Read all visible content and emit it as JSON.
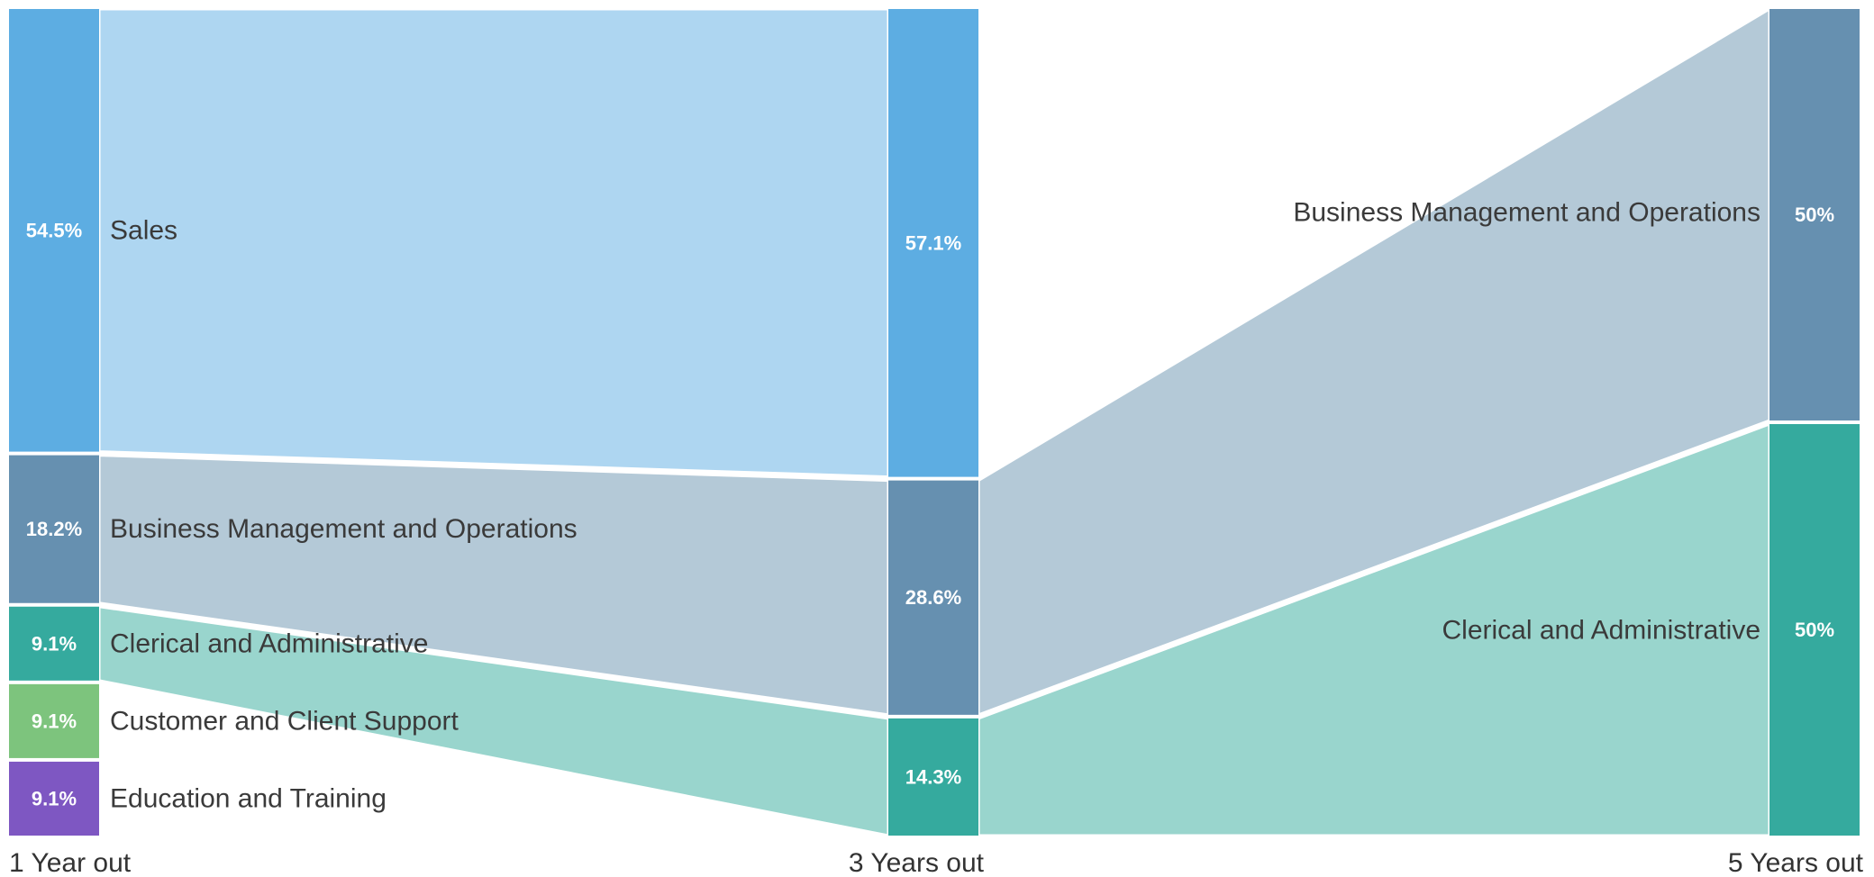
{
  "chart_data": {
    "type": "sankey",
    "columns": [
      {
        "label": "1 Year out",
        "nodes": [
          {
            "id": "y1-sales",
            "name": "Sales",
            "value": 54.5,
            "percent_label": "54.5%",
            "color": "#5dade2"
          },
          {
            "id": "y1-bmo",
            "name": "Business Management and Operations",
            "value": 18.2,
            "percent_label": "18.2%",
            "color": "#6690b0"
          },
          {
            "id": "y1-clerical",
            "name": "Clerical and Administrative",
            "value": 9.1,
            "percent_label": "9.1%",
            "color": "#35aa9e"
          },
          {
            "id": "y1-customer",
            "name": "Customer and Client Support",
            "value": 9.1,
            "percent_label": "9.1%",
            "color": "#7dc47d"
          },
          {
            "id": "y1-education",
            "name": "Education and Training",
            "value": 9.1,
            "percent_label": "9.1%",
            "color": "#7e57c2"
          }
        ]
      },
      {
        "label": "3 Years out",
        "nodes": [
          {
            "id": "y3-sales",
            "name": "Sales",
            "value": 57.1,
            "percent_label": "57.1%",
            "color": "#5dade2"
          },
          {
            "id": "y3-bmo",
            "name": "Business Management and Operations",
            "value": 28.6,
            "percent_label": "28.6%",
            "color": "#6690b0"
          },
          {
            "id": "y3-clerical",
            "name": "Clerical and Administrative",
            "value": 14.3,
            "percent_label": "14.3%",
            "color": "#35aa9e"
          }
        ]
      },
      {
        "label": "5 Years out",
        "nodes": [
          {
            "id": "y5-bmo",
            "name": "Business Management and Operations",
            "value": 50,
            "percent_label": "50%",
            "color": "#6690b0"
          },
          {
            "id": "y5-clerical",
            "name": "Clerical and Administrative",
            "value": 50,
            "percent_label": "50%",
            "color": "#35aa9e"
          }
        ]
      }
    ],
    "links": [
      {
        "source": "y1-sales",
        "target": "y3-sales",
        "color": "#aed6f1"
      },
      {
        "source": "y1-bmo",
        "target": "y3-bmo",
        "color": "#b4c9d7"
      },
      {
        "source": "y1-clerical",
        "target": "y3-clerical",
        "color": "#99d5cd"
      },
      {
        "source": "y3-bmo",
        "target": "y5-bmo",
        "color": "#b4c9d7"
      },
      {
        "source": "y3-clerical",
        "target": "y5-clerical",
        "color": "#99d5cd"
      }
    ]
  }
}
